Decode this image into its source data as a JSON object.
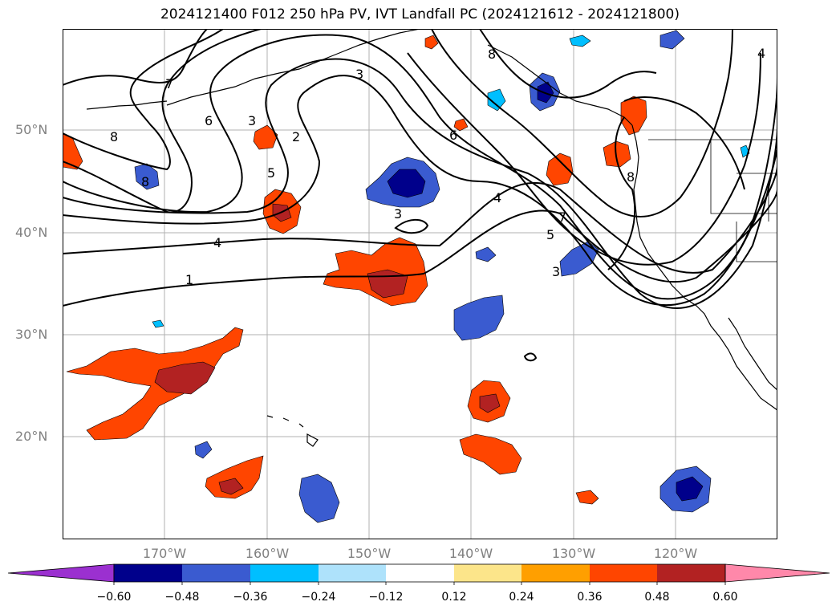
{
  "title": "2024121400 F012 250 hPa PV, IVT Landfall PC (2024121612 - 2024121800)",
  "lat_labels": [
    "50°N",
    "40°N",
    "30°N",
    "20°N"
  ],
  "lon_labels": [
    "170°W",
    "160°W",
    "150°W",
    "140°W",
    "130°W",
    "120°W"
  ],
  "contour_labels": [
    "7",
    "6",
    "3",
    "2",
    "5",
    "4",
    "1",
    "8",
    "8",
    "3",
    "6",
    "4",
    "7",
    "5",
    "3",
    "3",
    "8",
    "8",
    "4"
  ],
  "colorbar": {
    "ticks": [
      "−0.60",
      "−0.48",
      "−0.36",
      "−0.24",
      "−0.12",
      "0.12",
      "0.24",
      "0.36",
      "0.48",
      "0.60"
    ],
    "colors": [
      "#9b30d0",
      "#00008b",
      "#3a5bd0",
      "#00bfff",
      "#aee2fb",
      "#ffffff",
      "#fce58a",
      "#ff9f00",
      "#ff4500",
      "#b22222",
      "#ff88aa"
    ]
  }
}
